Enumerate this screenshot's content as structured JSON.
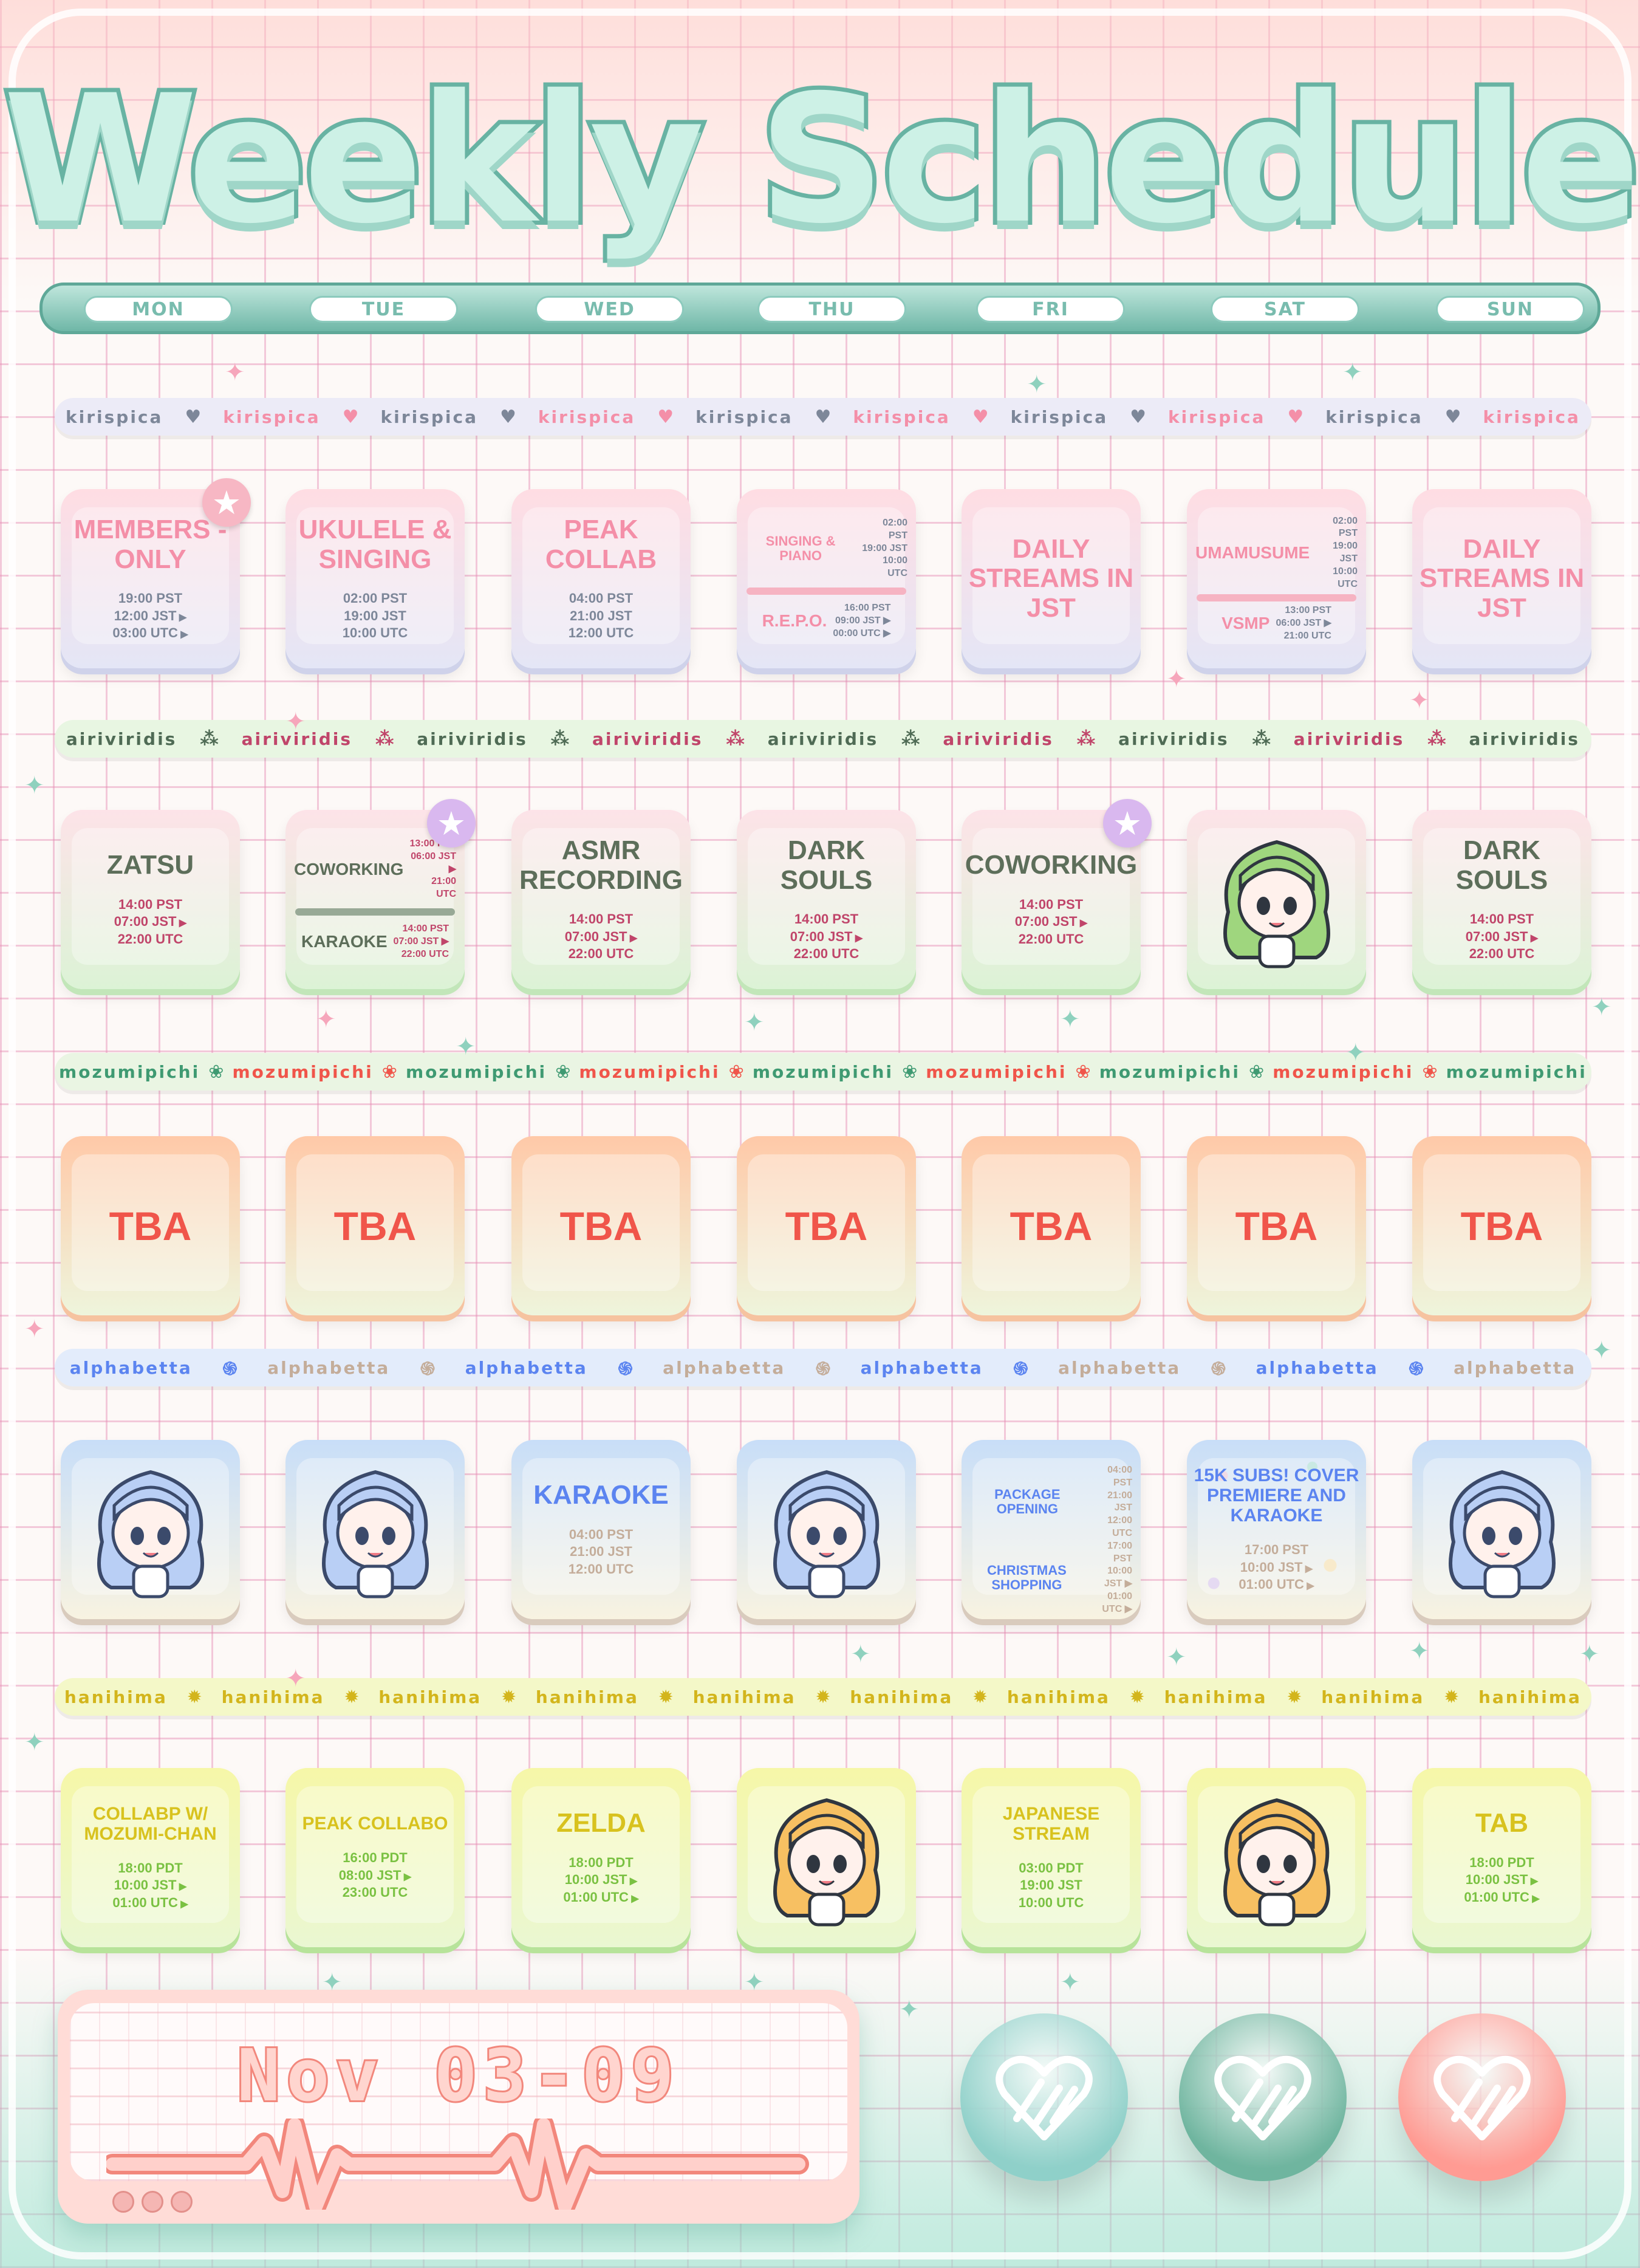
{
  "header": {
    "title": "Weekly Schedule"
  },
  "days": [
    "MON",
    "TUE",
    "WED",
    "THU",
    "FRI",
    "SAT",
    "SUN"
  ],
  "colors": {
    "accent_teal": "#68b3a3",
    "title_fill": "#cdf1e6"
  },
  "rows": [
    {
      "talent": "kirispica",
      "banner": {
        "bg": "#ecebf7",
        "colors": [
          "#7d8799",
          "#f48fa8"
        ],
        "icon": "heart-icon",
        "glyph": "♥",
        "count": 10
      },
      "theme": {
        "top": "#ffdde3",
        "bottom": "#e4e6f6",
        "edge": "#cfd2ea",
        "title": "#f48fa8",
        "times": "#7d8799",
        "divider": "#f6b3c2",
        "badge": "#f7b7c4"
      },
      "cells": [
        {
          "type": "single",
          "title": "MEMBERS -ONLY",
          "badge": true,
          "times": [
            {
              "t": "19:00 PST"
            },
            {
              "t": "12:00 JST",
              "next": true
            },
            {
              "t": "03:00 UTC",
              "next": true
            }
          ]
        },
        {
          "type": "single",
          "title": "UKULELE & SINGING",
          "times": [
            {
              "t": "02:00 PST"
            },
            {
              "t": "19:00 JST"
            },
            {
              "t": "10:00 UTC"
            }
          ]
        },
        {
          "type": "single",
          "title": "PEAK COLLAB",
          "times": [
            {
              "t": "04:00 PST"
            },
            {
              "t": "21:00 JST"
            },
            {
              "t": "12:00 UTC"
            }
          ]
        },
        {
          "type": "split",
          "events": [
            {
              "title": "SINGING & PIANO",
              "times": [
                {
                  "t": "02:00 PST"
                },
                {
                  "t": "19:00 JST"
                },
                {
                  "t": "10:00 UTC"
                }
              ]
            },
            {
              "title": "R.E.P.O.",
              "times": [
                {
                  "t": "16:00 PST"
                },
                {
                  "t": "09:00 JST",
                  "next": true
                },
                {
                  "t": "00:00 UTC",
                  "next": true
                }
              ]
            }
          ]
        },
        {
          "type": "single",
          "title": "DAILY STREAMS IN JST",
          "times": []
        },
        {
          "type": "split",
          "events": [
            {
              "title": "UMAMUSUME",
              "times": [
                {
                  "t": "02:00 PST"
                },
                {
                  "t": "19:00 JST"
                },
                {
                  "t": "10:00 UTC"
                }
              ]
            },
            {
              "title": "VSMP",
              "times": [
                {
                  "t": "13:00 PST"
                },
                {
                  "t": "06:00 JST",
                  "next": true
                },
                {
                  "t": "21:00 UTC"
                }
              ]
            }
          ]
        },
        {
          "type": "single",
          "title": "DAILY STREAMS IN JST",
          "times": []
        }
      ]
    },
    {
      "talent": "airiviridis",
      "banner": {
        "bg": "#e8f6e2",
        "colors": [
          "#4f6b55",
          "#c0456a"
        ],
        "icon": "bat-icon",
        "glyph": "⁂",
        "count": 9
      },
      "theme": {
        "top": "#fde3e8",
        "bottom": "#dcf3d6",
        "edge": "#c2e6b9",
        "title": "#5d6e5a",
        "times": "#c0456a",
        "divider": "#98a996",
        "badge": "#d9b8ef"
      },
      "cells": [
        {
          "type": "single",
          "title": "ZATSU",
          "times": [
            {
              "t": "14:00 PST"
            },
            {
              "t": "07:00 JST",
              "next": true
            },
            {
              "t": "22:00 UTC"
            }
          ]
        },
        {
          "type": "split",
          "badge": true,
          "events": [
            {
              "title": "COWORKING",
              "times": [
                {
                  "t": "13:00 PST"
                },
                {
                  "t": "06:00 JST",
                  "next": true
                },
                {
                  "t": "21:00 UTC"
                }
              ]
            },
            {
              "title": "KARAOKE",
              "times": [
                {
                  "t": "14:00 PST"
                },
                {
                  "t": "07:00 JST",
                  "next": true
                },
                {
                  "t": "22:00 UTC"
                }
              ]
            }
          ]
        },
        {
          "type": "single",
          "title": "ASMR RECORDING",
          "times": [
            {
              "t": "14:00 PST"
            },
            {
              "t": "07:00 JST",
              "next": true
            },
            {
              "t": "22:00 UTC"
            }
          ]
        },
        {
          "type": "single",
          "title": "DARK SOULS",
          "times": [
            {
              "t": "14:00 PST"
            },
            {
              "t": "07:00 JST",
              "next": true
            },
            {
              "t": "22:00 UTC"
            }
          ]
        },
        {
          "type": "single",
          "title": "COWORKING",
          "badge": true,
          "times": [
            {
              "t": "14:00 PST"
            },
            {
              "t": "07:00 JST",
              "next": true
            },
            {
              "t": "22:00 UTC"
            }
          ]
        },
        {
          "type": "image",
          "character": "green-haired-chibi",
          "hair": "#9fd67e",
          "accent": "#2f3640"
        },
        {
          "type": "single",
          "title": "DARK SOULS",
          "times": [
            {
              "t": "14:00 PST"
            },
            {
              "t": "07:00 JST",
              "next": true
            },
            {
              "t": "22:00 UTC"
            }
          ]
        }
      ]
    },
    {
      "talent": "mozumipichi",
      "banner": {
        "bg": "#eaf5e3",
        "colors": [
          "#3f9a72",
          "#f0554a"
        ],
        "icon": "citrus-icon",
        "glyph": "❀",
        "count": 9
      },
      "theme": {
        "top": "#ffc9a8",
        "bottom": "#eef5dc",
        "edge": "#f6c3a0",
        "title": "#f0554a",
        "times": "#f0554a",
        "divider": "#f0554a",
        "badge": "#f0554a"
      },
      "cells": [
        {
          "type": "tba",
          "title": "TBA"
        },
        {
          "type": "tba",
          "title": "TBA"
        },
        {
          "type": "tba",
          "title": "TBA"
        },
        {
          "type": "tba",
          "title": "TBA"
        },
        {
          "type": "tba",
          "title": "TBA"
        },
        {
          "type": "tba",
          "title": "TBA"
        },
        {
          "type": "tba",
          "title": "TBA"
        }
      ]
    },
    {
      "talent": "alphabetta",
      "banner": {
        "bg": "#e3ecfb",
        "colors": [
          "#5b84f0",
          "#c4ad9a"
        ],
        "icon": "shell-icon",
        "glyph": "֍",
        "count": 8
      },
      "theme": {
        "top": "#c8def8",
        "bottom": "#f8f3e1",
        "edge": "#d9cbbd",
        "title": "#5b84f0",
        "times": "#c4ad9a",
        "divider": "#86a3f2",
        "badge": "#86a3f2"
      },
      "cells": [
        {
          "type": "image",
          "character": "blue-haired-chibi",
          "hair": "#b9cff5",
          "accent": "#3b4a6b"
        },
        {
          "type": "image",
          "character": "blue-haired-chibi",
          "hair": "#b9cff5",
          "accent": "#3b4a6b"
        },
        {
          "type": "single",
          "title": "KARAOKE",
          "times": [
            {
              "t": "04:00 PST"
            },
            {
              "t": "21:00 JST"
            },
            {
              "t": "12:00 UTC"
            }
          ]
        },
        {
          "type": "image",
          "character": "blue-haired-chibi",
          "hair": "#b9cff5",
          "accent": "#3b4a6b"
        },
        {
          "type": "split",
          "events": [
            {
              "title": "PACKAGE OPENING",
              "times": [
                {
                  "t": "04:00 PST"
                },
                {
                  "t": "21:00 JST"
                },
                {
                  "t": "12:00 UTC"
                }
              ]
            },
            {
              "title": "CHRISTMAS SHOPPING",
              "times": [
                {
                  "t": "17:00 PST"
                },
                {
                  "t": "10:00 JST",
                  "next": true
                },
                {
                  "t": "01:00 UTC",
                  "next": true
                }
              ]
            }
          ]
        },
        {
          "type": "single",
          "title": "15K SUBS! COVER PREMIERE AND KARAOKE",
          "small": true,
          "confetti": true,
          "times": [
            {
              "t": "17:00 PST"
            },
            {
              "t": "10:00 JST",
              "next": true
            },
            {
              "t": "01:00 UTC",
              "next": true
            }
          ]
        },
        {
          "type": "image",
          "character": "blue-haired-chibi",
          "hair": "#b9cff5",
          "accent": "#3b4a6b"
        }
      ]
    },
    {
      "talent": "hanihima",
      "banner": {
        "bg": "#f4f8c8",
        "colors": [
          "#d3b51c",
          "#d3b51c"
        ],
        "icon": "sunflower-icon",
        "glyph": "✹",
        "count": 10
      },
      "theme": {
        "top": "#f6f7a8",
        "bottom": "#eaf7d2",
        "edge": "#b7e39a",
        "title": "#d8c21e",
        "times": "#7ac142",
        "divider": "#d8c21e",
        "badge": "#d8c21e"
      },
      "cells": [
        {
          "type": "single",
          "title": "COLLABP W/ MOZUMI-CHAN",
          "small": true,
          "times": [
            {
              "t": "18:00 PDT"
            },
            {
              "t": "10:00 JST",
              "next": true
            },
            {
              "t": "01:00 UTC",
              "next": true
            }
          ]
        },
        {
          "type": "single",
          "title": "PEAK COLLABO",
          "small": true,
          "times": [
            {
              "t": "16:00 PDT"
            },
            {
              "t": "08:00 JST",
              "next": true
            },
            {
              "t": "23:00 UTC"
            }
          ]
        },
        {
          "type": "single",
          "title": "ZELDA",
          "times": [
            {
              "t": "18:00 PDT"
            },
            {
              "t": "10:00 JST",
              "next": true
            },
            {
              "t": "01:00 UTC",
              "next": true
            }
          ]
        },
        {
          "type": "image",
          "character": "orange-haired-chibi",
          "hair": "#f7c062",
          "accent": "#2f3640"
        },
        {
          "type": "single",
          "title": "JAPANESE STREAM",
          "small": true,
          "times": [
            {
              "t": "03:00 PDT"
            },
            {
              "t": "19:00 JST"
            },
            {
              "t": "10:00 UTC"
            }
          ]
        },
        {
          "type": "image",
          "character": "orange-haired-chibi",
          "hair": "#f7c062",
          "accent": "#2f3640"
        },
        {
          "type": "single",
          "title": "TAB",
          "times": [
            {
              "t": "18:00 PDT"
            },
            {
              "t": "10:00 JST",
              "next": true
            },
            {
              "t": "01:00 UTC",
              "next": true
            }
          ]
        }
      ]
    }
  ],
  "footer": {
    "date_range": "Nov 03-09",
    "buttons": [
      {
        "name": "heart-button-teal",
        "color": "#8fd0c9"
      },
      {
        "name": "heart-button-green",
        "color": "#6fb59f"
      },
      {
        "name": "heart-button-coral",
        "color": "#ff9b93"
      }
    ]
  }
}
